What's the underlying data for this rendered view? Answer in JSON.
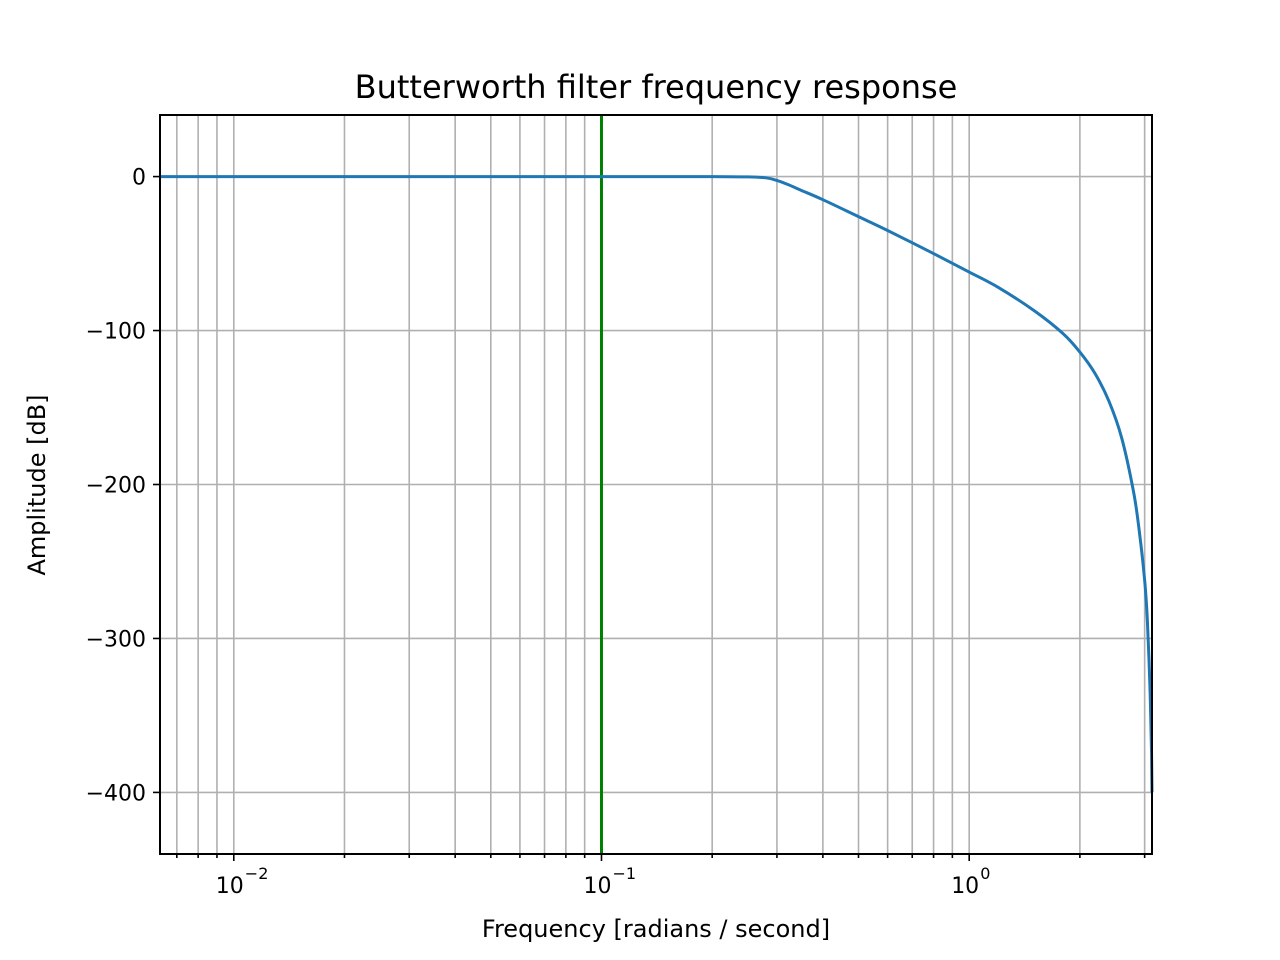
{
  "chart_data": {
    "type": "line",
    "title": "Butterworth filter frequency response",
    "xlabel": "Frequency [radians / second]",
    "ylabel": "Amplitude [dB]",
    "xscale": "log",
    "xlim": [
      0.0063,
      3.1416
    ],
    "ylim": [
      -440,
      40
    ],
    "grid": true,
    "grid_which": "both",
    "x_tick_labels": [
      {
        "value": 0.01,
        "base": "10",
        "exp": "−2"
      },
      {
        "value": 0.1,
        "base": "10",
        "exp": "−1"
      },
      {
        "value": 1,
        "base": "10",
        "exp": "0"
      }
    ],
    "y_ticks": [
      0,
      -100,
      -200,
      -300,
      -400
    ],
    "y_tick_labels": [
      "0",
      "−100",
      "−200",
      "−300",
      "−400"
    ],
    "series": [
      {
        "color": "#1f77b4",
        "x": [
          0.0063,
          0.01,
          0.03,
          0.1,
          0.2,
          0.25,
          0.28,
          0.3,
          0.32,
          0.35,
          0.4,
          0.5,
          0.6,
          0.8,
          1.0,
          1.2,
          1.5,
          1.8,
          2.0,
          2.2,
          2.4,
          2.6,
          2.8,
          2.9,
          3.0,
          3.05,
          3.1,
          3.13,
          3.1416
        ],
        "y": [
          0,
          0,
          0,
          0,
          0,
          -0.2,
          -0.8,
          -2.5,
          -5,
          -9,
          -15,
          -26,
          -35,
          -50,
          -62,
          -72,
          -87,
          -102,
          -114,
          -128,
          -146,
          -170,
          -205,
          -230,
          -262,
          -287,
          -330,
          -370,
          -400
        ]
      }
    ],
    "vlines": [
      {
        "x": 0.1,
        "color": "#008000"
      }
    ]
  }
}
